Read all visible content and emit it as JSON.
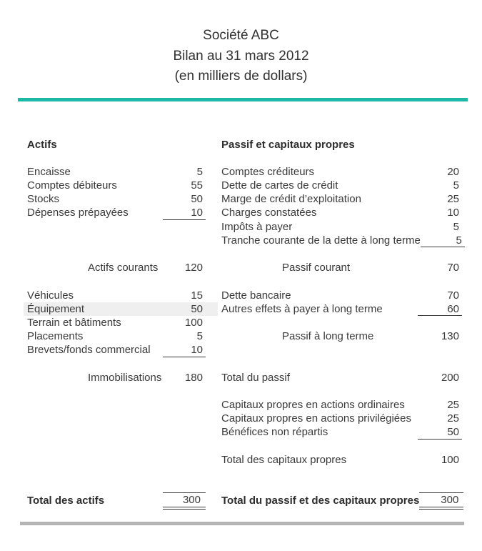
{
  "title": {
    "line1": "Société ABC",
    "line2": "Bilan au 31 mars 2012",
    "line3": "(en milliers de dollars)"
  },
  "headers": {
    "left": "Actifs",
    "right": "Passif et capitaux propres"
  },
  "rows": [
    {
      "ll": "Encaisse",
      "lv": "5",
      "rl": "Comptes créditeurs",
      "rv": "20"
    },
    {
      "ll": "Comptes débiteurs",
      "lv": "55",
      "rl": "Dette de cartes de crédit",
      "rv": "5"
    },
    {
      "ll": "Stocks",
      "lv": "50",
      "rl": "Marge de crédit d’exploitation",
      "rv": "25"
    },
    {
      "ll": "Dépenses prépayées",
      "lv": "10",
      "rl": "Charges constatées",
      "rv": "10"
    },
    {
      "ll": "",
      "lv": "",
      "rl": "Impôts à payer",
      "rv": "5"
    },
    {
      "ll": "",
      "lv": "",
      "rl": "Tranche courante de la dette à long terme",
      "rv": "5"
    },
    {
      "ll": "Actifs courants",
      "lv": "120",
      "rl": "Passif courant",
      "rv": "70"
    },
    {
      "ll": "Véhicules",
      "lv": "15",
      "rl": "Dette bancaire",
      "rv": "70"
    },
    {
      "ll": "Équipement",
      "lv": "50",
      "rl": "Autres effets à payer à long terme",
      "rv": "60"
    },
    {
      "ll": "Terrain et bâtiments",
      "lv": "100",
      "rl": "",
      "rv": ""
    },
    {
      "ll": "Placements",
      "lv": "5",
      "rl": "Passif à long terme",
      "rv": "130"
    },
    {
      "ll": "Brevets/fonds commercial",
      "lv": "10",
      "rl": "",
      "rv": ""
    },
    {
      "ll": "Immobilisations",
      "lv": "180",
      "rl": "Total du passif",
      "rv": "200"
    },
    {
      "ll": "",
      "lv": "",
      "rl": "Capitaux propres en actions ordinaires",
      "rv": "25"
    },
    {
      "ll": "",
      "lv": "",
      "rl": "Capitaux propres en actions privilégiées",
      "rv": "25"
    },
    {
      "ll": "",
      "lv": "",
      "rl": "Bénéfices non répartis",
      "rv": "50"
    },
    {
      "ll": "",
      "lv": "",
      "rl": "Total des capitaux propres",
      "rv": "100"
    },
    {
      "ll": "Total des actifs",
      "lv": "300",
      "rl": "Total du passif et des capitaux propres",
      "rv": "300"
    }
  ],
  "colors": {
    "accent_line": "#1db8a6",
    "bottom_line": "#b4b4b4",
    "row_highlight": "#efefef",
    "text": "#3a3a3a"
  }
}
